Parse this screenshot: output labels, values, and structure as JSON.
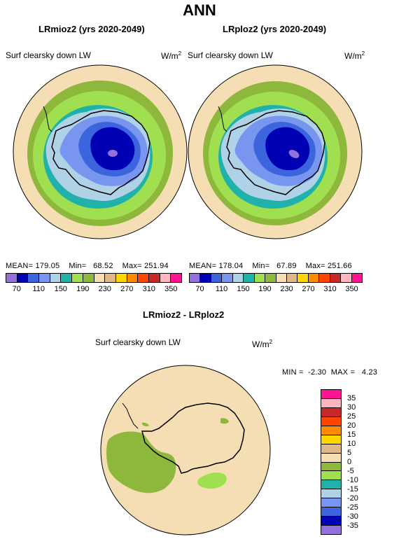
{
  "title": "ANN",
  "panels": [
    {
      "title": "LRmioz2 (yrs 2020-2049)",
      "variable": "Surf clearsky down LW",
      "units_base": "W/m",
      "units_exp": "2",
      "mean_label": "MEAN=",
      "mean": "179.05",
      "min_label": "Min=",
      "min": "68.52",
      "max_label": "Max=",
      "max": "251.94"
    },
    {
      "title": "LRploz2 (yrs 2020-2049)",
      "variable": "Surf clearsky down LW",
      "units_base": "W/m",
      "units_exp": "2",
      "mean_label": "MEAN=",
      "mean": "178.04",
      "min_label": "Min=",
      "min": "67.89",
      "max_label": "Max=",
      "max": "251.66"
    }
  ],
  "colorbar_top": {
    "colors": [
      "#9370db",
      "#0000b4",
      "#3c64dc",
      "#7896f0",
      "#afd2e6",
      "#20b2aa",
      "#a0e050",
      "#8db83c",
      "#f5deb3",
      "#deb887",
      "#ffd700",
      "#ff8c00",
      "#ff4500",
      "#c82828",
      "#ffb6c1",
      "#ff1493"
    ],
    "labels": [
      "70",
      "110",
      "150",
      "190",
      "230",
      "270",
      "310",
      "350"
    ]
  },
  "diff_panel": {
    "title": "LRmioz2 - LRploz2",
    "variable": "Surf clearsky down LW",
    "units_base": "W/m",
    "units_exp": "2",
    "min_label": "MIN =",
    "min": "-2.30",
    "max_label": "MAX =",
    "max": "4.23"
  },
  "colorbar_diff": {
    "colors": [
      "#ff1493",
      "#ffb6c1",
      "#c82828",
      "#ff4500",
      "#ff8c00",
      "#ffd700",
      "#deb887",
      "#f5deb3",
      "#8db83c",
      "#a0e050",
      "#20b2aa",
      "#afd2e6",
      "#7896f0",
      "#3c64dc",
      "#0000b4",
      "#9370db"
    ],
    "labels": [
      "35",
      "30",
      "25",
      "20",
      "15",
      "10",
      "5",
      "0",
      "-5",
      "-10",
      "-15",
      "-20",
      "-25",
      "-30",
      "-35"
    ]
  }
}
